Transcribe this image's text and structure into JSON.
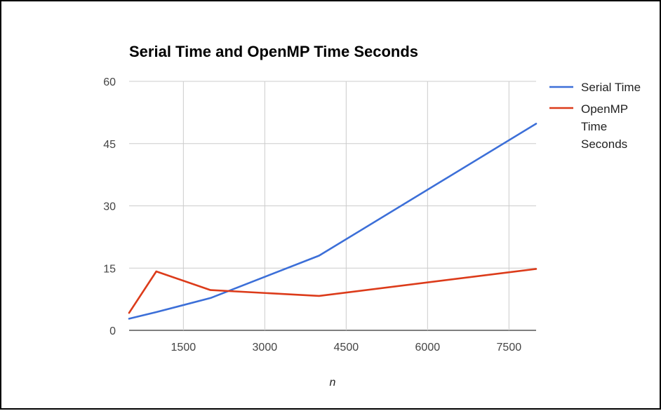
{
  "chart_data": {
    "type": "line",
    "title": "Serial Time and OpenMP Time Seconds",
    "xlabel": "n",
    "ylabel": "",
    "xlim": [
      500,
      8000
    ],
    "ylim": [
      0,
      60
    ],
    "x_ticks": [
      "1500",
      "3000",
      "4500",
      "6000",
      "7500"
    ],
    "y_ticks": [
      "0",
      "15",
      "30",
      "45",
      "60"
    ],
    "grid": true,
    "legend_position": "right",
    "series": [
      {
        "name": "Serial Time",
        "color": "#3c6fd8",
        "x": [
          500,
          1000,
          2000,
          4000,
          8000
        ],
        "y": [
          2.8,
          4.4,
          7.8,
          18.0,
          49.8
        ]
      },
      {
        "name": "OpenMP Time Seconds",
        "legend_lines": [
          "OpenMP",
          "Time",
          "Seconds"
        ],
        "color": "#dc3b1a",
        "x": [
          500,
          1000,
          2000,
          4000,
          8000
        ],
        "y": [
          4.2,
          14.2,
          9.7,
          8.3,
          14.8
        ]
      }
    ]
  }
}
